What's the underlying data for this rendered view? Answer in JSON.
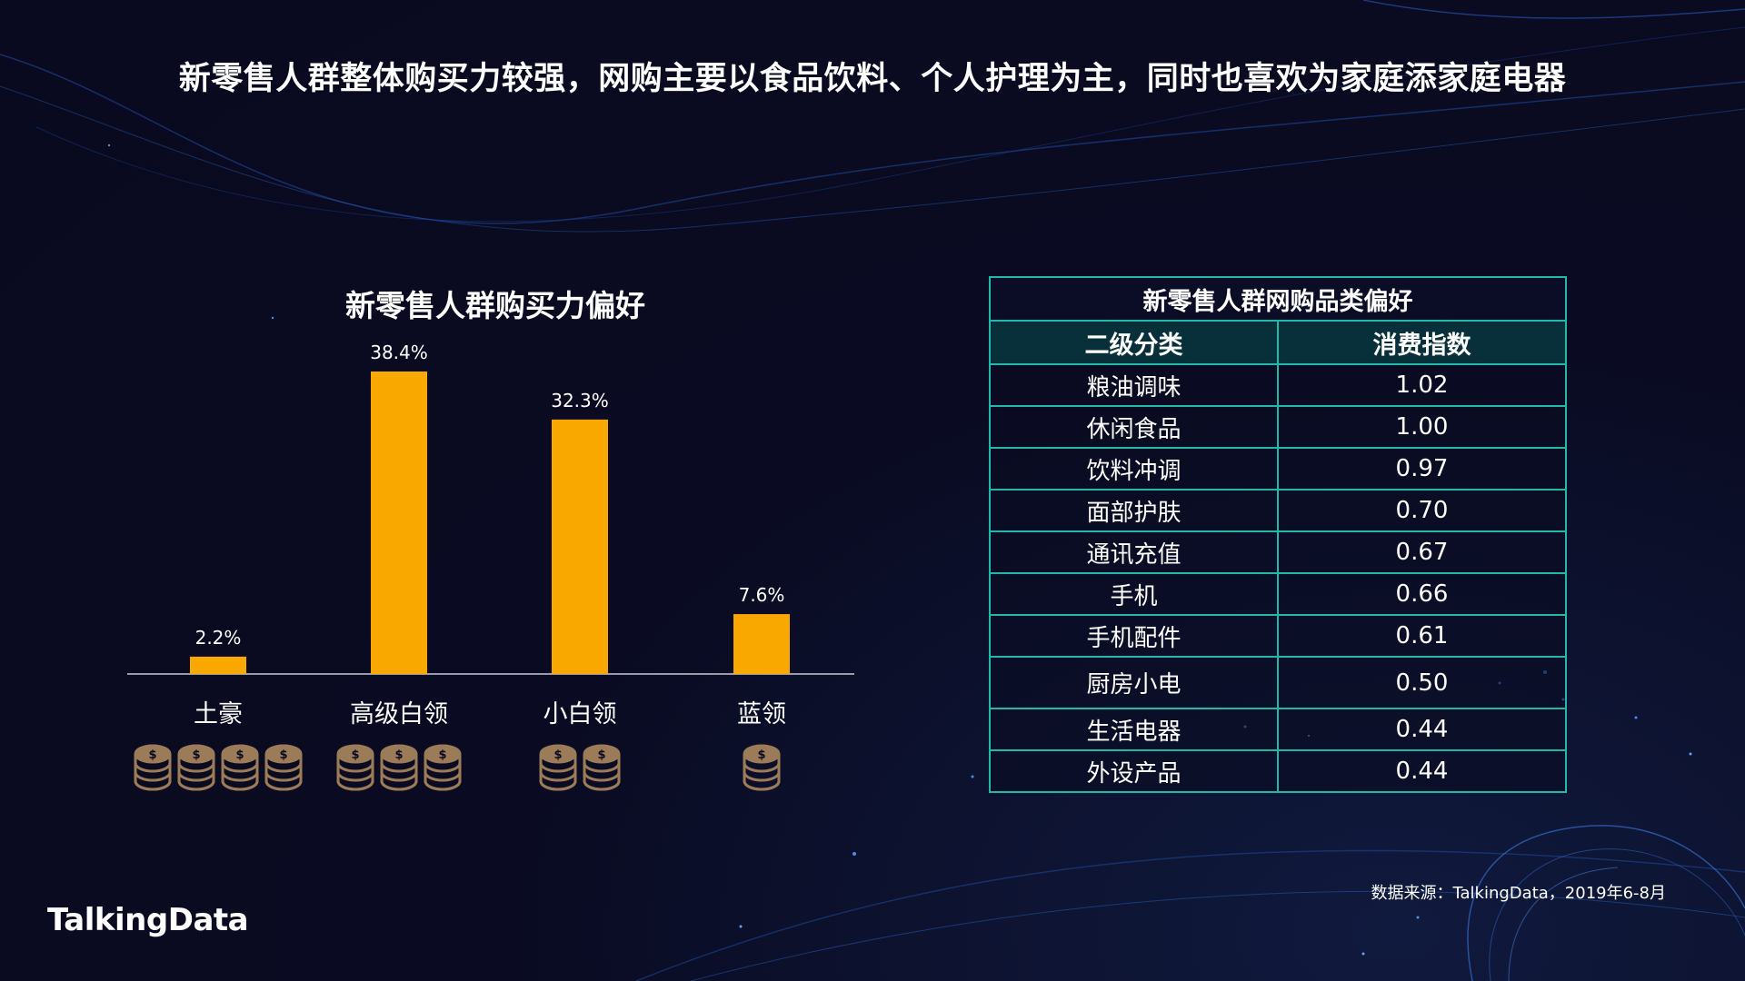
{
  "headline": "新零售人群整体购买力较强，网购主要以食品饮料、个人护理为主，同时也喜欢为家庭添家庭电器",
  "colors": {
    "background": "#0a0b22",
    "bar": "#f9a800",
    "table_border": "#22b7a6",
    "table_header_bg": "#07303b",
    "coin": "#9b7b58"
  },
  "chart_data": {
    "type": "bar",
    "title": "新零售人群购买力偏好",
    "categories": [
      "土豪",
      "高级白领",
      "小白领",
      "蓝领"
    ],
    "values": [
      2.2,
      38.4,
      32.3,
      7.6
    ],
    "value_labels": [
      "2.2%",
      "38.4%",
      "32.3%",
      "7.6%"
    ],
    "coin_counts": [
      4,
      3,
      2,
      1
    ],
    "ylim": [
      0,
      40
    ],
    "grid": false,
    "legend": "none",
    "xlabel": "",
    "ylabel": ""
  },
  "table": {
    "title": "新零售人群网购品类偏好",
    "headers": [
      "二级分类",
      "消费指数"
    ],
    "rows": [
      [
        "粮油调味",
        "1.02"
      ],
      [
        "休闲食品",
        "1.00"
      ],
      [
        "饮料冲调",
        "0.97"
      ],
      [
        "面部护肤",
        "0.70"
      ],
      [
        "通讯充值",
        "0.67"
      ],
      [
        "手机",
        "0.66"
      ],
      [
        "手机配件",
        "0.61"
      ],
      [
        "厨房小电",
        "0.50"
      ],
      [
        "生活电器",
        "0.44"
      ],
      [
        "外设产品",
        "0.44"
      ]
    ]
  },
  "source": "数据来源：TalkingData，2019年6-8月",
  "logo": "TalkingData"
}
